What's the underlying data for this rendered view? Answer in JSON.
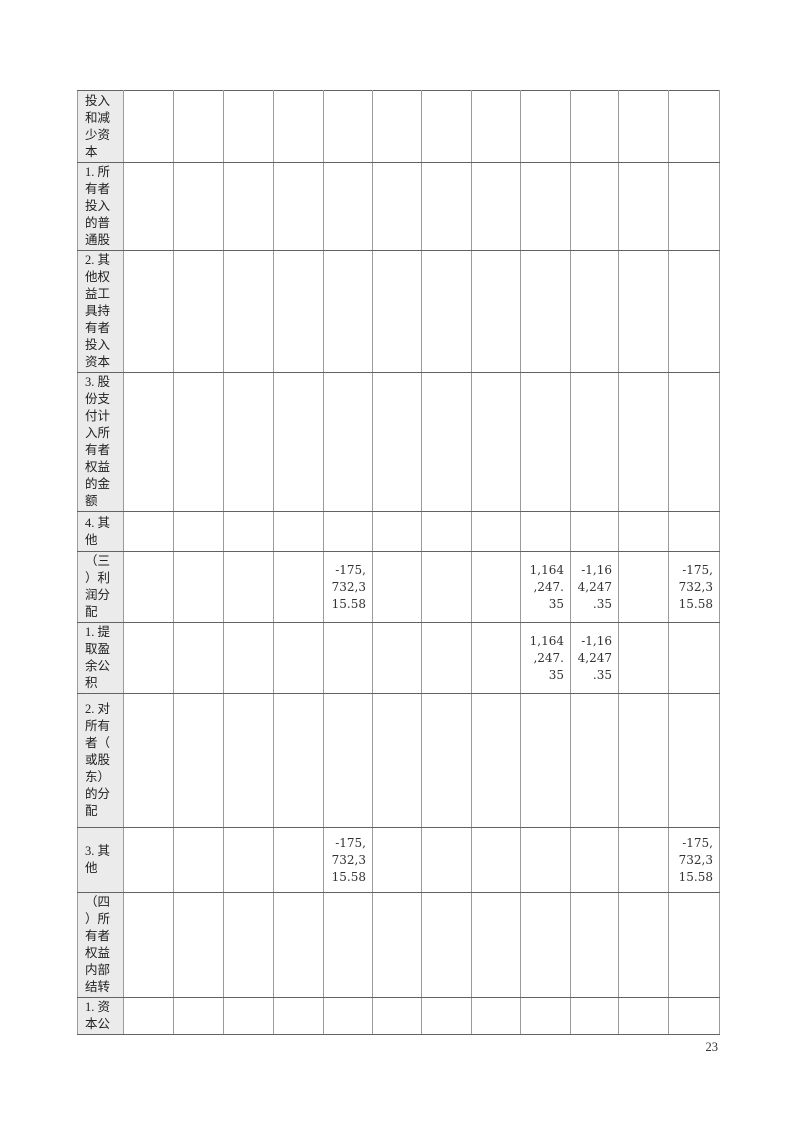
{
  "page": {
    "number": "23"
  },
  "colors": {
    "label_bg": "#ebebeb",
    "grid_horizontal": "#636363",
    "grid_vertical": "#9b9b9b",
    "text": "#2e2e2e"
  },
  "table": {
    "data_column_count": 12,
    "rows": [
      {
        "label": "投入和减少资本",
        "values": {}
      },
      {
        "label": "1. 所有者投入的普通股",
        "values": {}
      },
      {
        "label": "2. 其他权益工具持有者投入资本",
        "values": {}
      },
      {
        "label": "3. 股份支付计入所有者权益的金额",
        "values": {}
      },
      {
        "label": "4. 其他",
        "values": {}
      },
      {
        "label": "（三）利润分配",
        "values": {
          "5": "-175,732,315.58",
          "9": "1,164,247.35",
          "10": "-1,164,247.35",
          "12": "-175,732,315.58"
        }
      },
      {
        "label": "1. 提取盈余公积",
        "values": {
          "9": "1,164,247.35",
          "10": "-1,164,247.35"
        }
      },
      {
        "label": "2. 对所有者（或股东）的分配",
        "values": {}
      },
      {
        "label": "3. 其他",
        "values": {
          "5": "-175,732,315.58",
          "12": "-175,732,315.58"
        }
      },
      {
        "label": "（四）所有者权益内部结转",
        "values": {}
      },
      {
        "label": "1. 资本公",
        "values": {}
      }
    ]
  }
}
